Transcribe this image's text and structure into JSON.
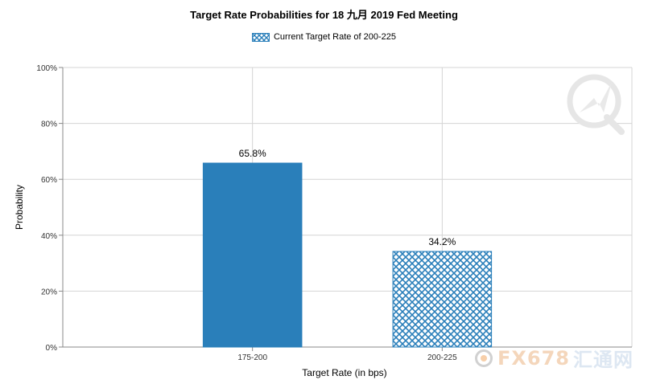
{
  "chart_data": {
    "type": "bar",
    "title": "Target Rate Probabilities for 18 九月 2019 Fed Meeting",
    "legend": {
      "label": "Current Target Rate of 200-225",
      "placement": "top-center"
    },
    "categories": [
      "175-200",
      "200-225"
    ],
    "values": [
      65.8,
      34.2
    ],
    "data_labels": [
      "65.8%",
      "34.2%"
    ],
    "highlighted_category": "200-225",
    "xlabel": "Target Rate (in bps)",
    "ylabel": "Probability",
    "ylim": [
      0,
      100
    ],
    "yticks": [
      0,
      20,
      40,
      60,
      80,
      100
    ],
    "ytick_labels": [
      "0%",
      "20%",
      "40%",
      "60%",
      "80%",
      "100%"
    ],
    "grid": true,
    "colors": {
      "bar": "#2a7fba",
      "hatch": "#2a7fba",
      "grid": "#d4d4d4",
      "axis": "#888888"
    }
  },
  "watermark": {
    "text_1": "FX678",
    "text_2": "汇通网"
  }
}
